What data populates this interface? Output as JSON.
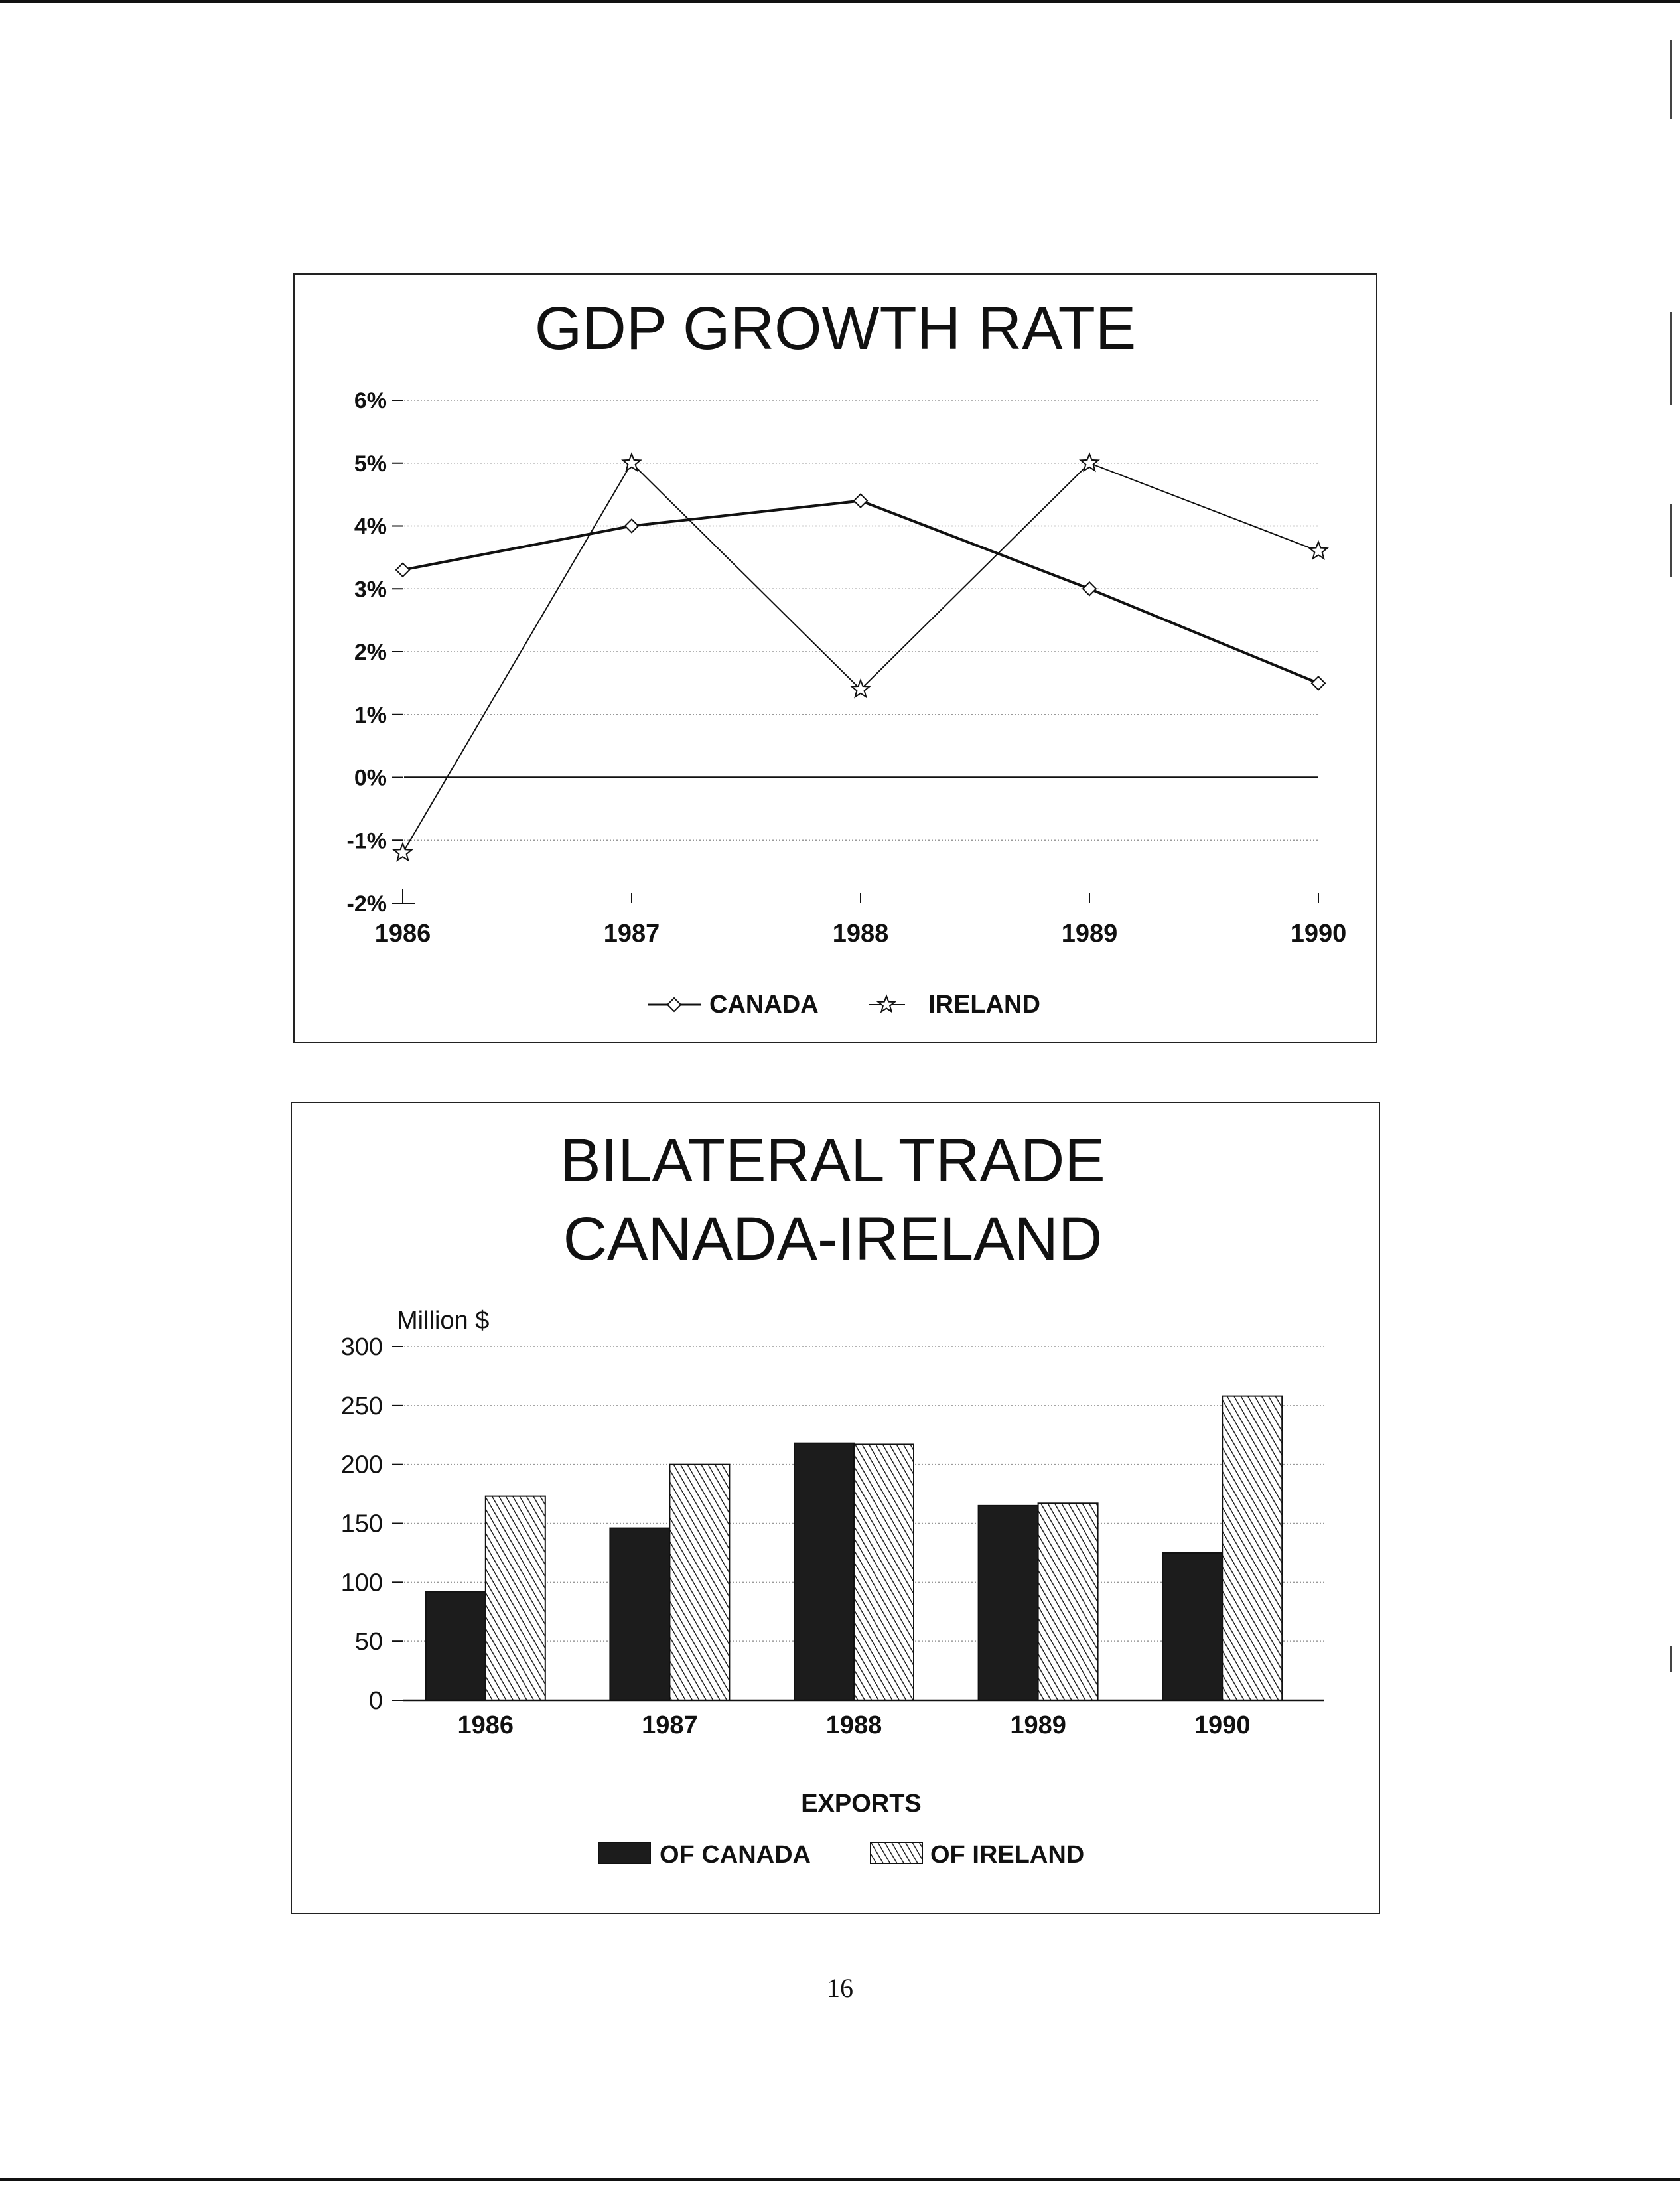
{
  "page": {
    "number": "16"
  },
  "chart_data": [
    {
      "type": "line",
      "title": "GDP GROWTH RATE",
      "x": [
        "1986",
        "1987",
        "1988",
        "1989",
        "1990"
      ],
      "y_ticks": [
        "6%",
        "5%",
        "4%",
        "3%",
        "2%",
        "1%",
        "0%",
        "-1%",
        "-2%"
      ],
      "ylim": [
        -2,
        6
      ],
      "grid": true,
      "legend_position": "bottom",
      "series": [
        {
          "name": "CANADA",
          "marker": "diamond",
          "values": [
            3.3,
            4.0,
            4.4,
            3.0,
            1.5
          ]
        },
        {
          "name": "IRELAND",
          "marker": "star",
          "values": [
            -1.2,
            5.0,
            1.4,
            5.0,
            3.6
          ]
        }
      ]
    },
    {
      "type": "bar",
      "title": [
        "BILATERAL TRADE",
        "CANADA-IRELAND"
      ],
      "ylabel": "Million $",
      "categories": [
        "1986",
        "1987",
        "1988",
        "1989",
        "1990"
      ],
      "y_ticks": [
        "300",
        "250",
        "200",
        "150",
        "100",
        "50",
        "0"
      ],
      "ylim": [
        0,
        300
      ],
      "grid": true,
      "legend_title": "EXPORTS",
      "legend_position": "bottom",
      "series": [
        {
          "name": "OF CANADA",
          "fill": "#1c1c1c",
          "values": [
            92,
            146,
            218,
            165,
            125
          ]
        },
        {
          "name": "OF IRELAND",
          "fill": "hatched",
          "values": [
            173,
            200,
            217,
            167,
            258
          ]
        }
      ]
    }
  ]
}
